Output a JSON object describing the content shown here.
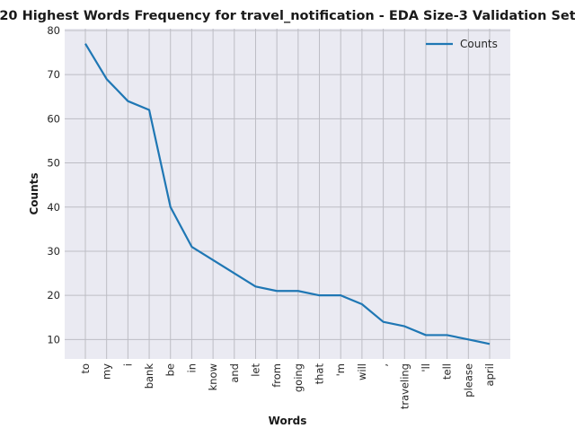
{
  "chart_data": {
    "type": "line",
    "title": "20 Highest Words Frequency for travel_notification - EDA Size-3 Validation Set",
    "xlabel": "Words",
    "ylabel": "Counts",
    "categories": [
      "to",
      "my",
      "i",
      "bank",
      "be",
      "in",
      "know",
      "and",
      "let",
      "from",
      "going",
      "that",
      "'m",
      "will",
      ",",
      "traveling",
      "'ll",
      "tell",
      "please",
      "april"
    ],
    "series": [
      {
        "name": "Counts",
        "values": [
          77,
          69,
          64,
          62,
          40,
          31,
          28,
          25,
          22,
          21,
          21,
          20,
          20,
          18,
          14,
          13,
          11,
          11,
          10,
          9
        ],
        "color": "#1f77b4"
      }
    ],
    "ylim": [
      5.6,
      80.4
    ],
    "yticks": [
      10,
      20,
      30,
      40,
      50,
      60,
      70,
      80
    ],
    "grid": true,
    "legend": "top-right",
    "background": "#eaeaf2",
    "grid_color": "#bdbdc4"
  }
}
